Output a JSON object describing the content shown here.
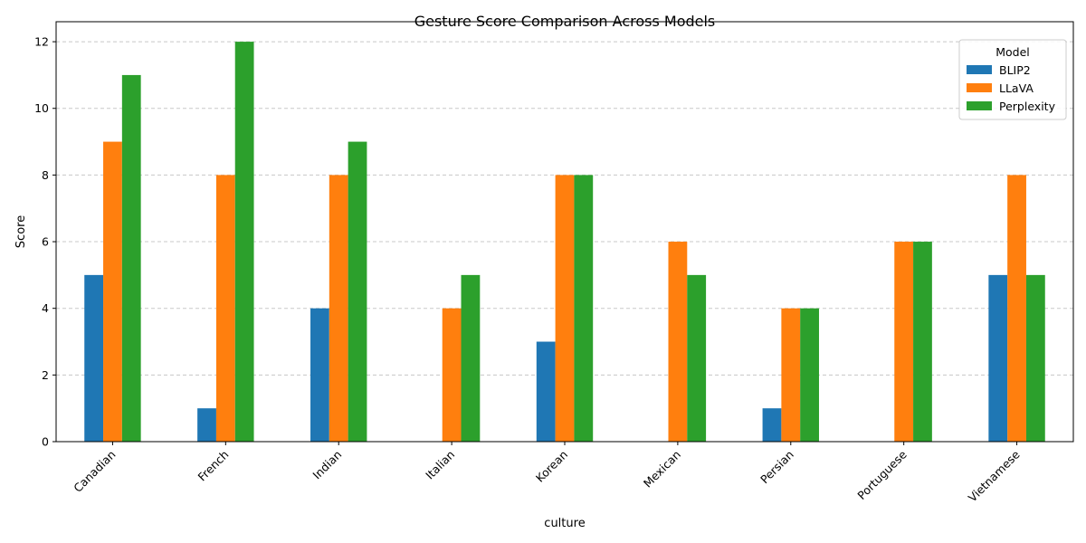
{
  "chart_data": {
    "type": "bar",
    "title": "Gesture Score Comparison Across Models",
    "xlabel": "culture",
    "ylabel": "Score",
    "ylim": [
      0,
      12.6
    ],
    "yticks": [
      0,
      2,
      4,
      6,
      8,
      10,
      12
    ],
    "grid": "y-dashed",
    "legend": {
      "title": "Model",
      "position": "top-right"
    },
    "categories": [
      "Canadian",
      "French",
      "Indian",
      "Italian",
      "Korean",
      "Mexican",
      "Persian",
      "Portuguese",
      "Vietnamese"
    ],
    "series": [
      {
        "name": "BLIP2",
        "color": "#1f77b4",
        "values": [
          5,
          1,
          4,
          0,
          3,
          0,
          1,
          0,
          5
        ]
      },
      {
        "name": "LLaVA",
        "color": "#ff7f0e",
        "values": [
          9,
          8,
          8,
          4,
          8,
          6,
          4,
          6,
          8
        ]
      },
      {
        "name": "Perplexity",
        "color": "#2ca02c",
        "values": [
          11,
          12,
          9,
          5,
          8,
          5,
          4,
          6,
          5
        ]
      }
    ]
  }
}
